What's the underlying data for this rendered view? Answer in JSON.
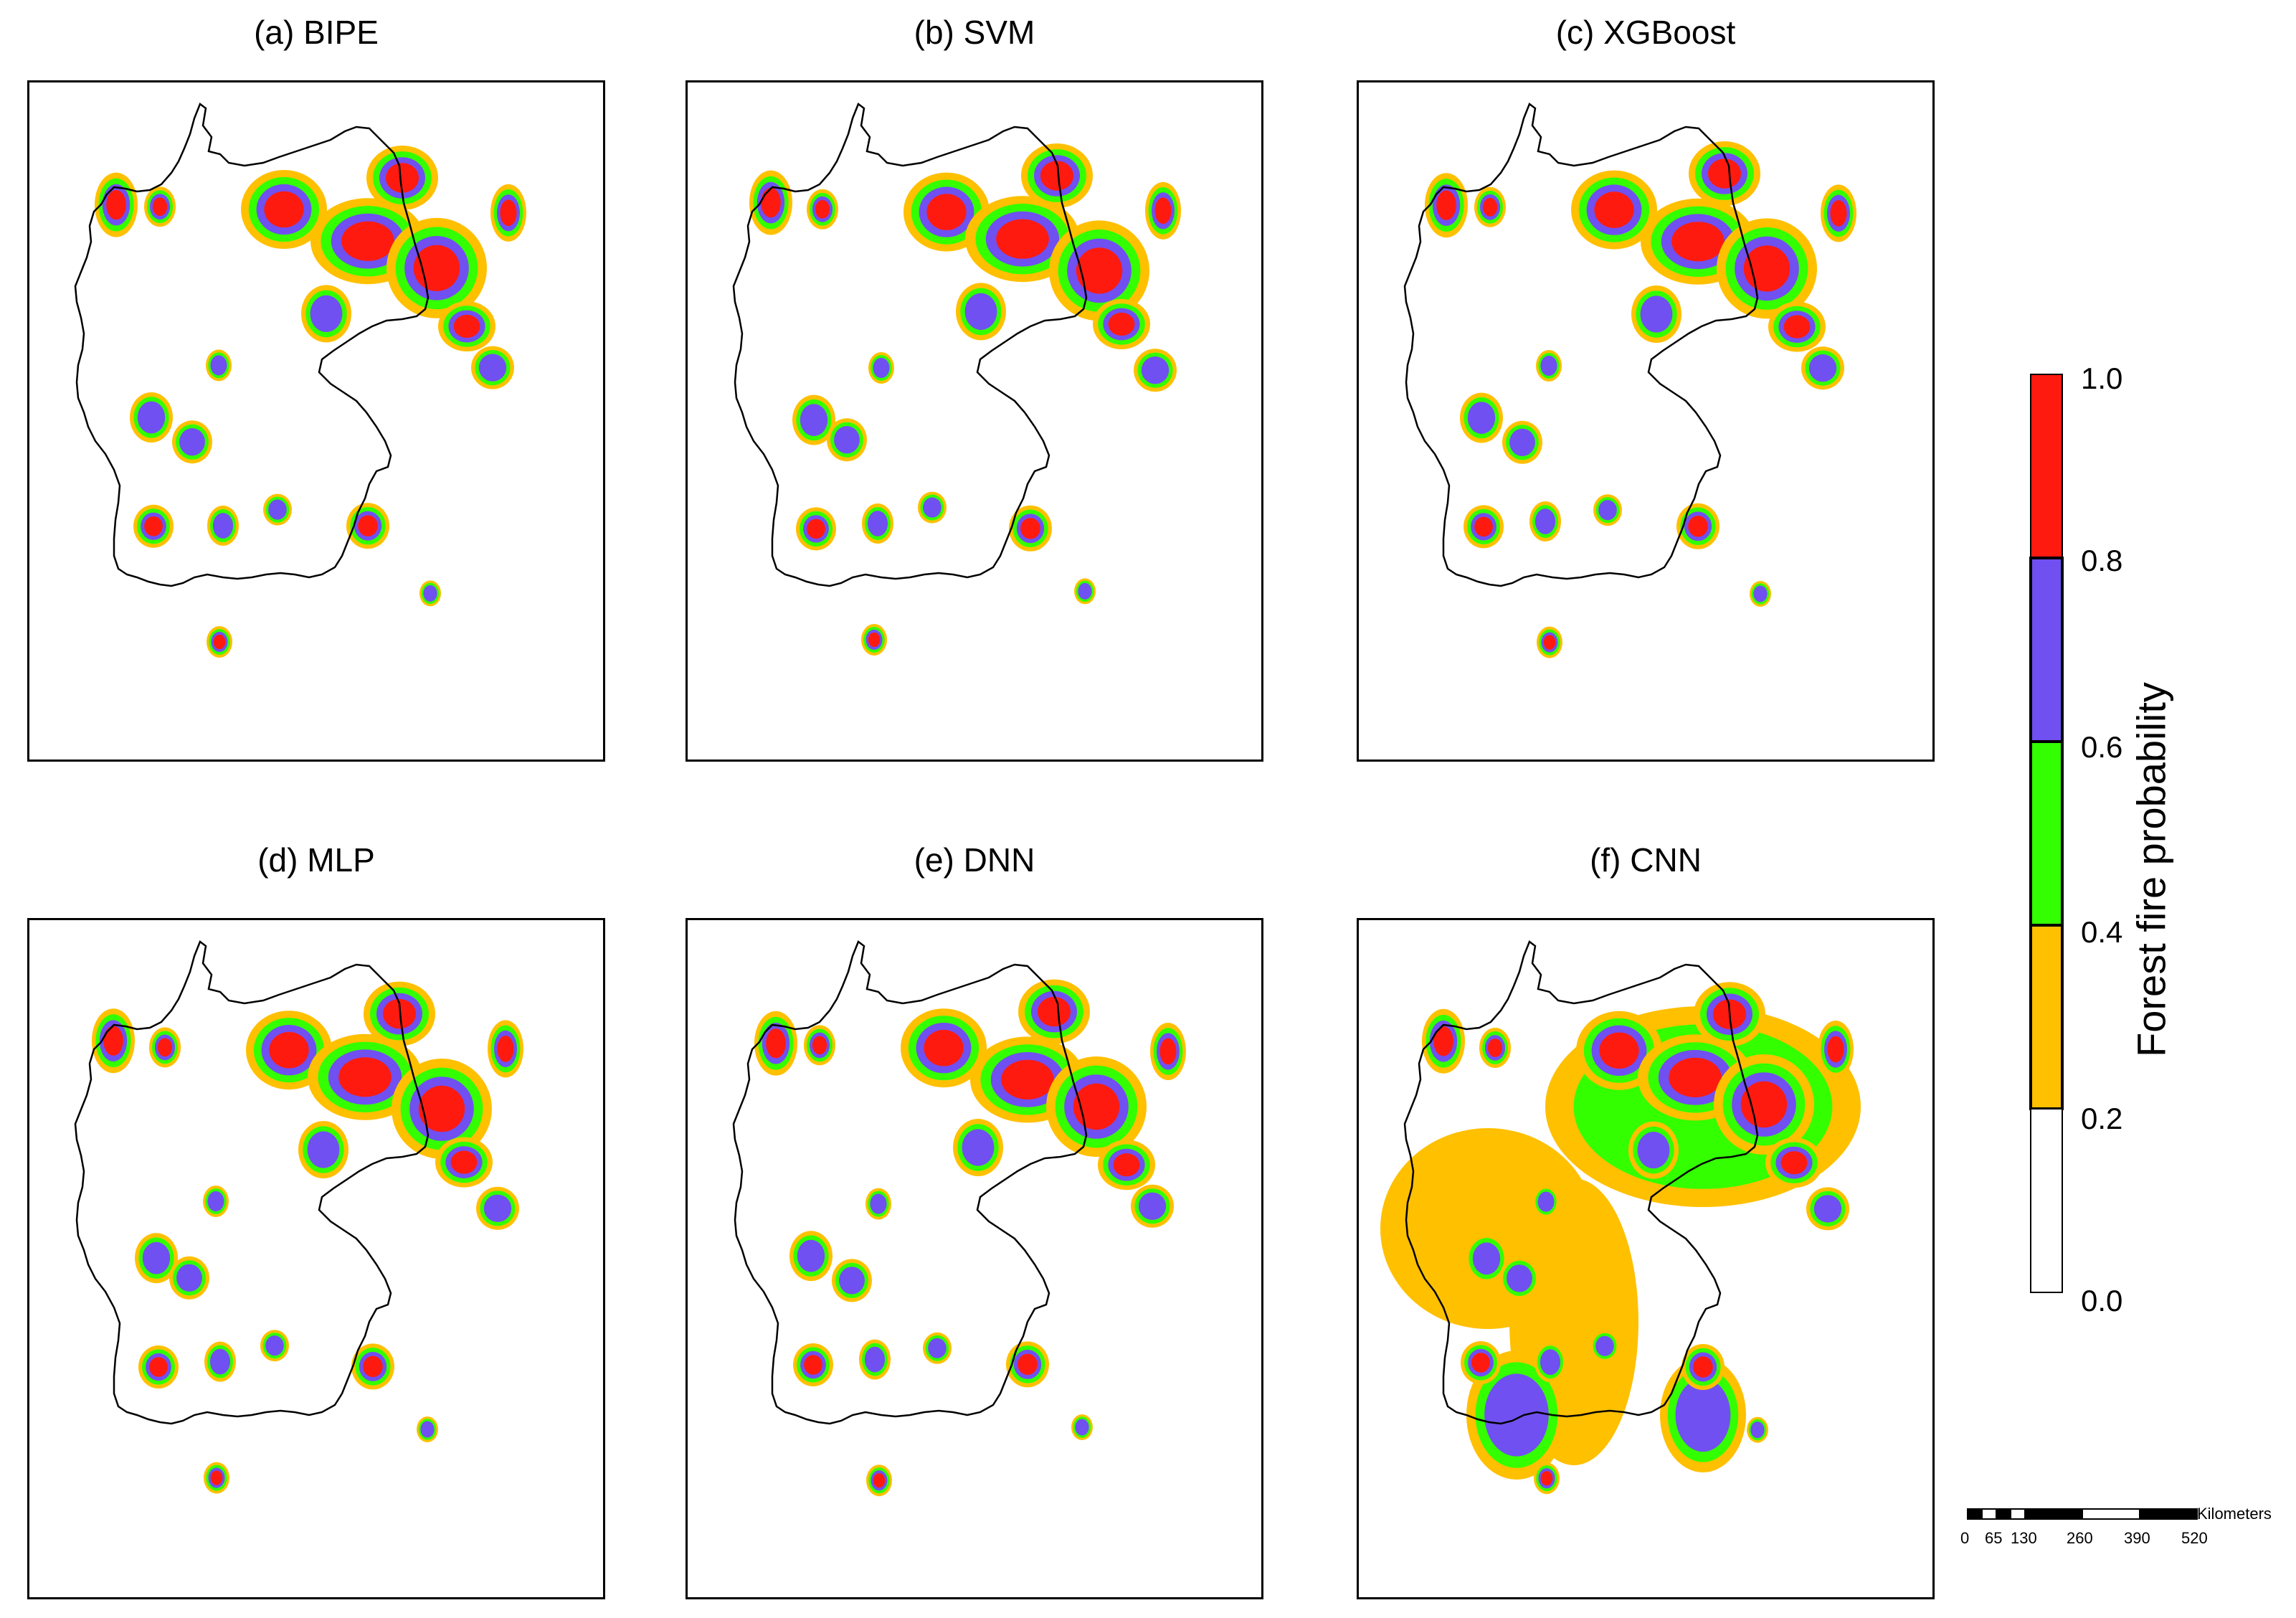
{
  "panels": [
    {
      "id": "a",
      "title": "(a) BIPE"
    },
    {
      "id": "b",
      "title": "(b) SVM"
    },
    {
      "id": "c",
      "title": "(c) XGBoost"
    },
    {
      "id": "d",
      "title": "(d) MLP"
    },
    {
      "id": "e",
      "title": "(e) DNN"
    },
    {
      "id": "f",
      "title": "(f) CNN"
    }
  ],
  "legend": {
    "title": "Forest fire probability",
    "ticks": [
      "1.0",
      "0.8",
      "0.6",
      "0.4",
      "0.2",
      "0.0"
    ],
    "classes": [
      {
        "range": "0.0-0.2",
        "color": "#ffffff"
      },
      {
        "range": "0.2-0.4",
        "color": "#ffc000"
      },
      {
        "range": "0.4-0.6",
        "color": "#33ff00"
      },
      {
        "range": "0.6-0.8",
        "color": "#7050f0"
      },
      {
        "range": "0.8-1.0",
        "color": "#ff1a10"
      }
    ]
  },
  "scale_bar": {
    "unit": "Kilometers",
    "ticks": [
      "0",
      "65",
      "130",
      "260",
      "390",
      "520"
    ]
  }
}
